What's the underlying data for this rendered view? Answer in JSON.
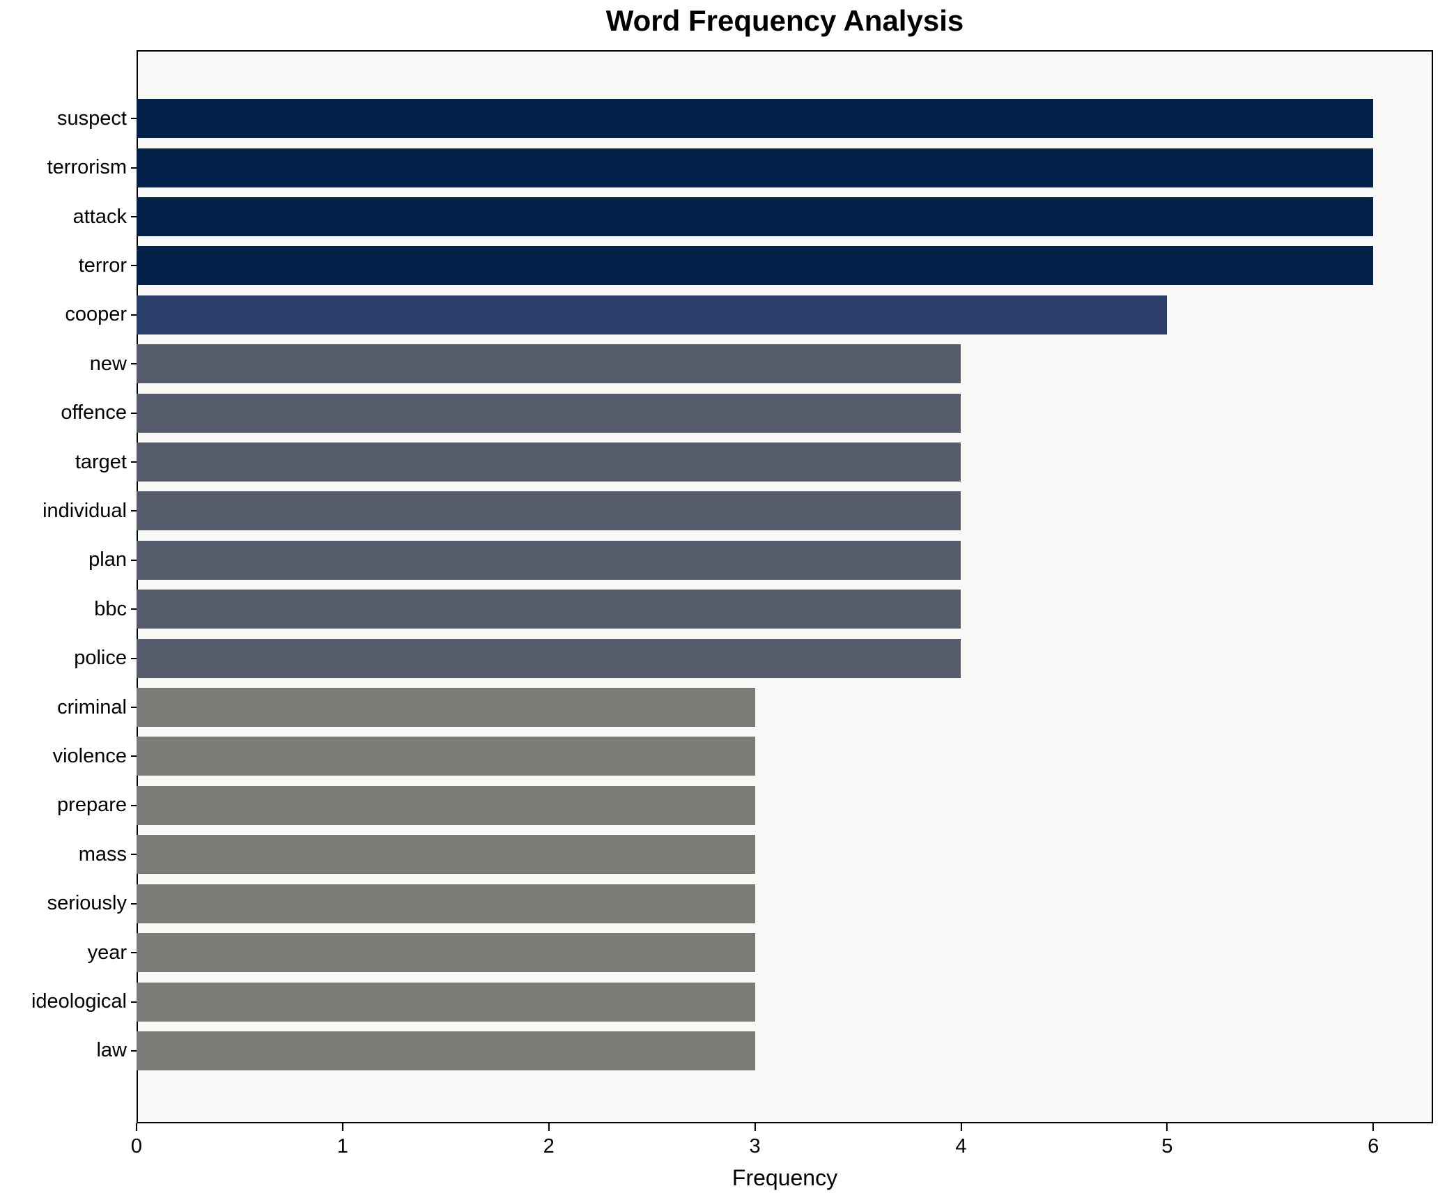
{
  "chart_data": {
    "type": "bar",
    "orientation": "horizontal",
    "title": "Word Frequency Analysis",
    "xlabel": "Frequency",
    "ylabel": "",
    "categories": [
      "suspect",
      "terrorism",
      "attack",
      "terror",
      "cooper",
      "new",
      "offence",
      "target",
      "individual",
      "plan",
      "bbc",
      "police",
      "criminal",
      "violence",
      "prepare",
      "mass",
      "seriously",
      "year",
      "ideological",
      "law"
    ],
    "values": [
      6,
      6,
      6,
      6,
      5,
      4,
      4,
      4,
      4,
      4,
      4,
      4,
      3,
      3,
      3,
      3,
      3,
      3,
      3,
      3
    ],
    "bar_colors": [
      "#042149",
      "#042149",
      "#042149",
      "#042149",
      "#2c3e6b",
      "#575c6d",
      "#575c6d",
      "#575c6d",
      "#575c6d",
      "#575c6d",
      "#575c6d",
      "#575c6d",
      "#7b7b77",
      "#7b7b77",
      "#7b7b77",
      "#7b7b77",
      "#7b7b77",
      "#7b7b77",
      "#7b7b77",
      "#7b7b77"
    ],
    "x_ticks": [
      0,
      1,
      2,
      3,
      4,
      5,
      6
    ],
    "xlim": [
      0,
      6.29
    ],
    "grid": false,
    "legend": "none",
    "plot_background": "#f8f8f7",
    "figure_background": "#ffffff"
  }
}
